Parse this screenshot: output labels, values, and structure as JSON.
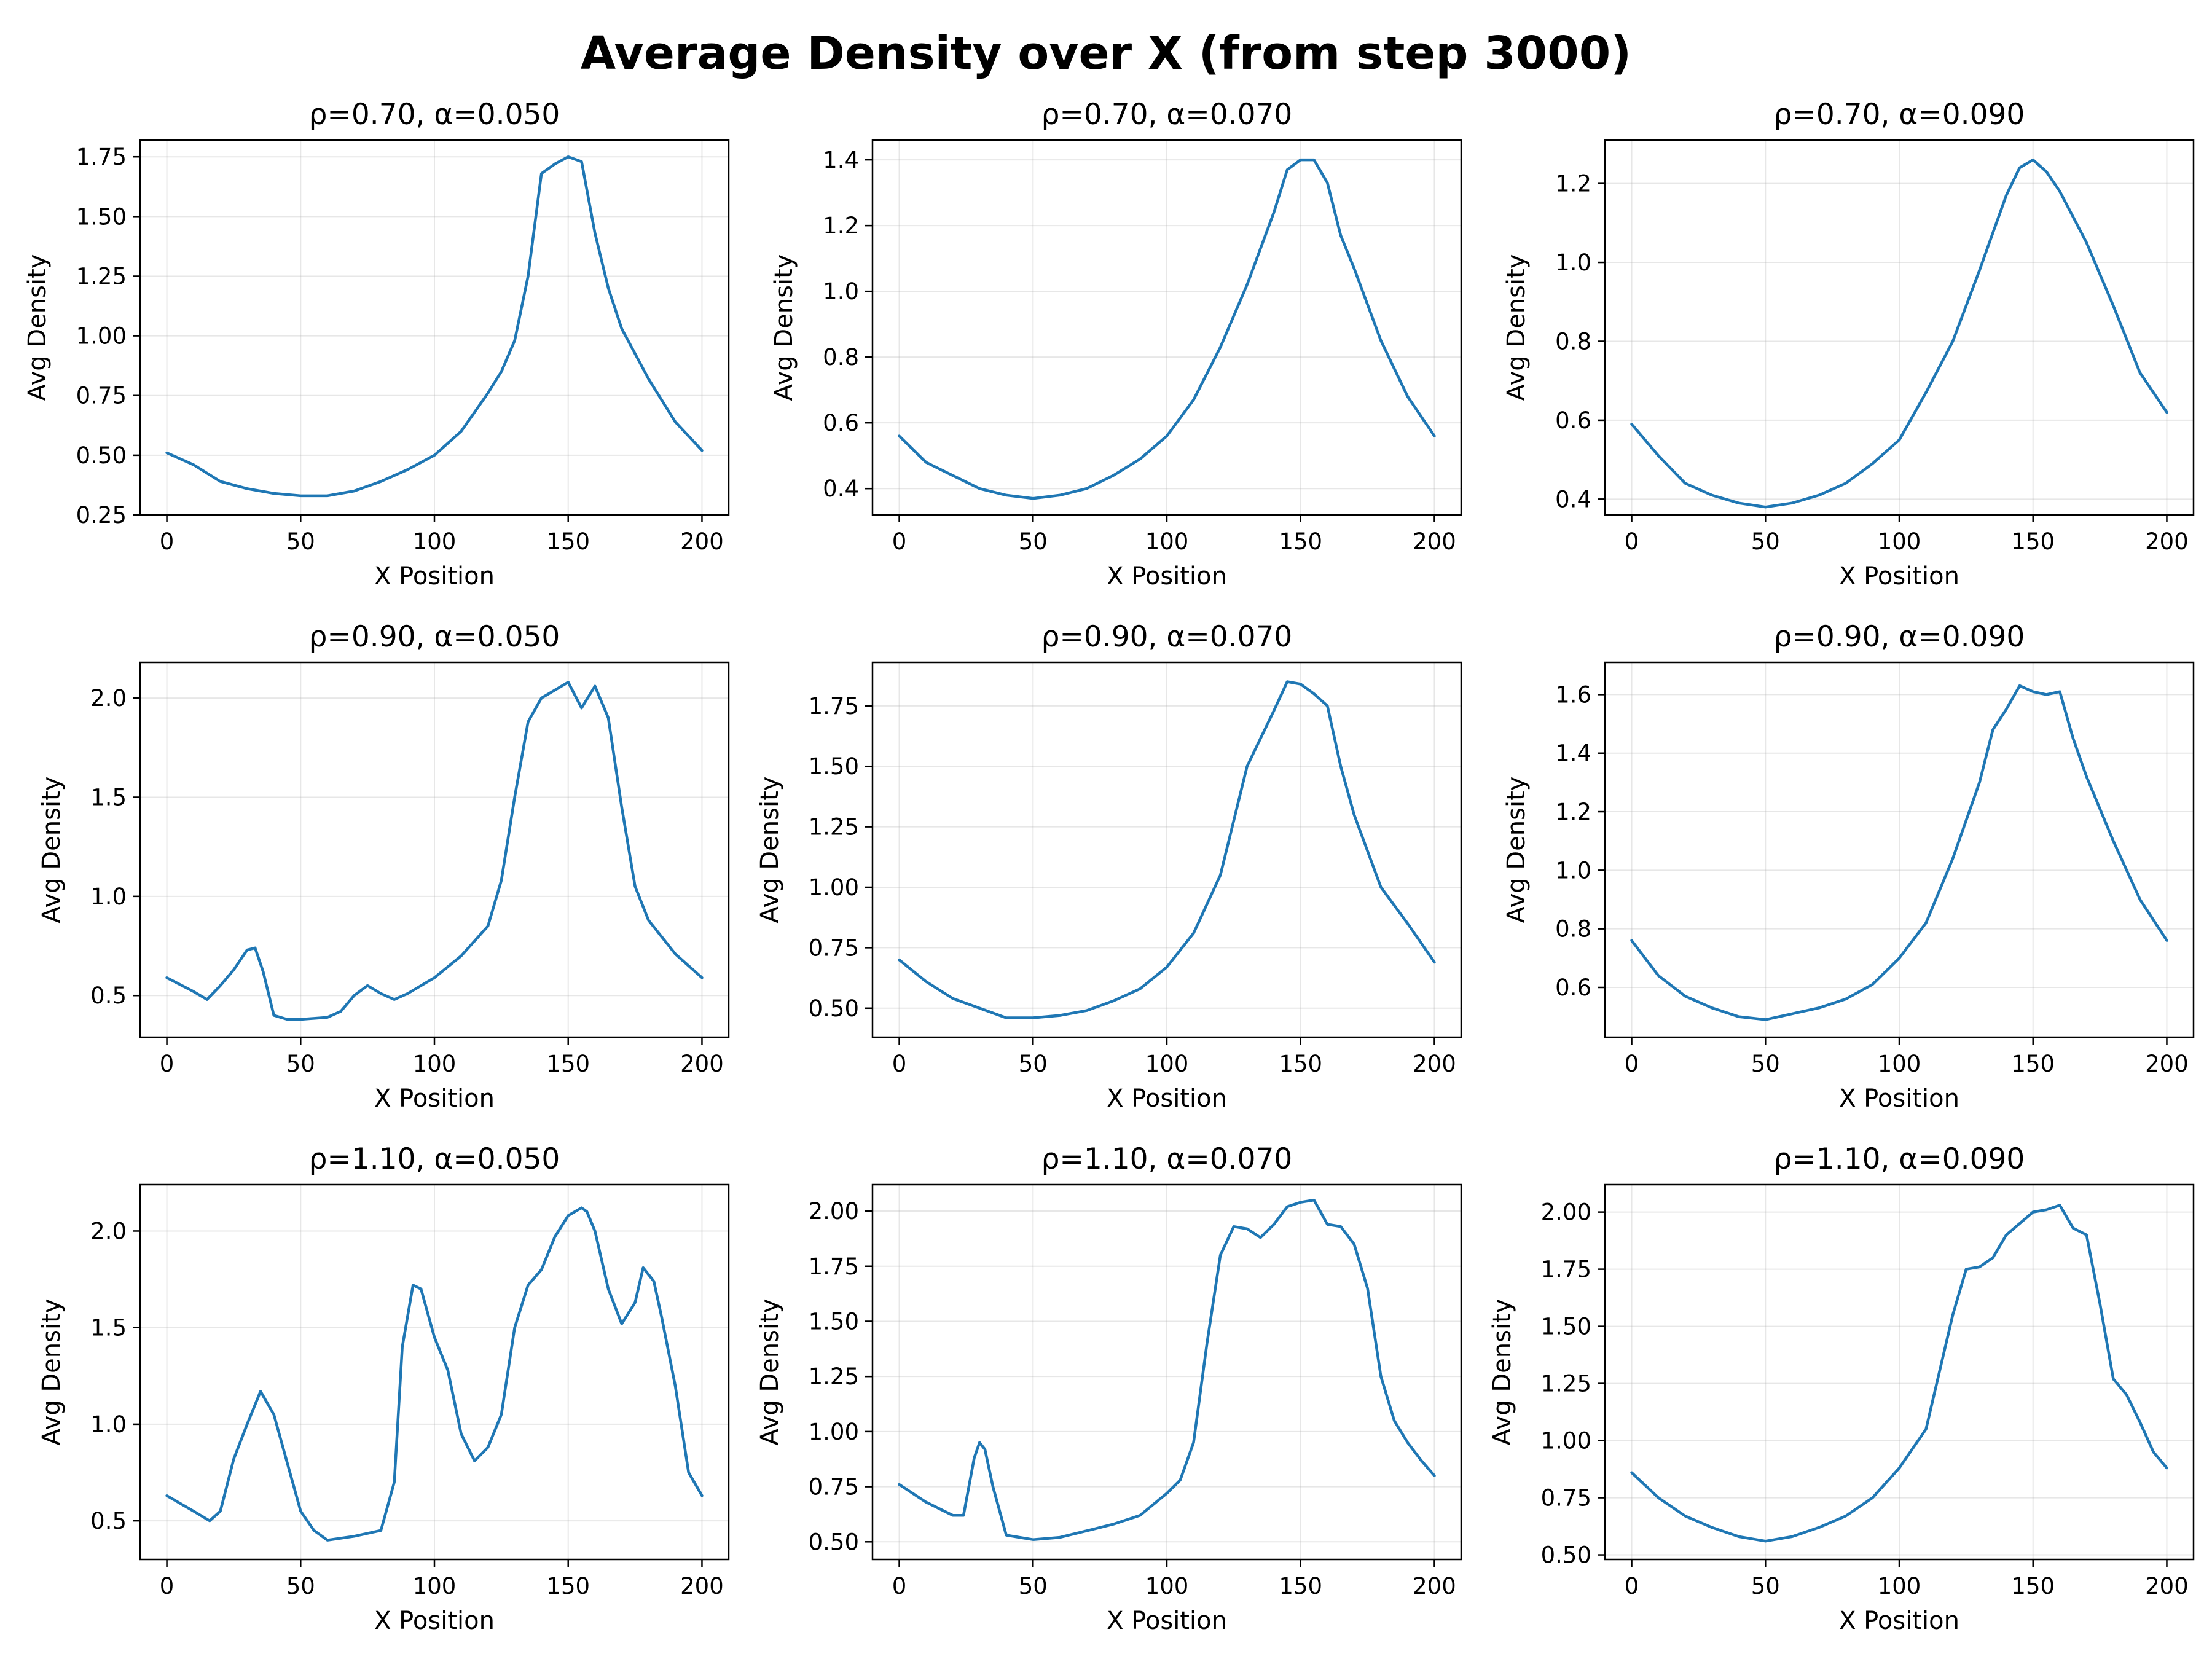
{
  "figure_title": "Average Density over X (from step 3000)",
  "colors": {
    "line": "#1f77b4",
    "grid": "#b0b0b0",
    "background": "#ffffff"
  },
  "chart_data": [
    {
      "type": "line",
      "title": "ρ=0.70, α=0.050",
      "xlabel": "X Position",
      "ylabel": "Avg Density",
      "xlim": [
        -10,
        210
      ],
      "ylim": [
        0.25,
        1.82
      ],
      "xticks": [
        0,
        50,
        100,
        150,
        200
      ],
      "yticks": [
        0.25,
        0.5,
        0.75,
        1.0,
        1.25,
        1.5,
        1.75
      ],
      "ytick_labels": [
        "0.25",
        "0.50",
        "0.75",
        "1.00",
        "1.25",
        "1.50",
        "1.75"
      ],
      "grid": true,
      "series": [
        {
          "x": [
            0,
            10,
            20,
            30,
            40,
            50,
            60,
            70,
            80,
            90,
            100,
            110,
            120,
            125,
            130,
            135,
            140,
            145,
            150,
            155,
            160,
            165,
            170,
            180,
            190,
            200
          ],
          "y": [
            0.51,
            0.46,
            0.39,
            0.36,
            0.34,
            0.33,
            0.33,
            0.35,
            0.39,
            0.44,
            0.5,
            0.6,
            0.76,
            0.85,
            0.98,
            1.25,
            1.68,
            1.72,
            1.75,
            1.73,
            1.43,
            1.2,
            1.03,
            0.82,
            0.64,
            0.52
          ]
        }
      ]
    },
    {
      "type": "line",
      "title": "ρ=0.70, α=0.070",
      "xlabel": "X Position",
      "ylabel": "Avg Density",
      "xlim": [
        -10,
        210
      ],
      "ylim": [
        0.32,
        1.46
      ],
      "xticks": [
        0,
        50,
        100,
        150,
        200
      ],
      "yticks": [
        0.4,
        0.6,
        0.8,
        1.0,
        1.2,
        1.4
      ],
      "ytick_labels": [
        "0.4",
        "0.6",
        "0.8",
        "1.0",
        "1.2",
        "1.4"
      ],
      "grid": true,
      "series": [
        {
          "x": [
            0,
            10,
            20,
            30,
            40,
            50,
            60,
            70,
            80,
            90,
            100,
            110,
            120,
            130,
            140,
            145,
            150,
            155,
            160,
            165,
            170,
            180,
            190,
            200
          ],
          "y": [
            0.56,
            0.48,
            0.44,
            0.4,
            0.38,
            0.37,
            0.38,
            0.4,
            0.44,
            0.49,
            0.56,
            0.67,
            0.83,
            1.02,
            1.24,
            1.37,
            1.4,
            1.4,
            1.33,
            1.17,
            1.07,
            0.85,
            0.68,
            0.56
          ]
        }
      ]
    },
    {
      "type": "line",
      "title": "ρ=0.70, α=0.090",
      "xlabel": "X Position",
      "ylabel": "Avg Density",
      "xlim": [
        -10,
        210
      ],
      "ylim": [
        0.36,
        1.31
      ],
      "xticks": [
        0,
        50,
        100,
        150,
        200
      ],
      "yticks": [
        0.4,
        0.6,
        0.8,
        1.0,
        1.2
      ],
      "ytick_labels": [
        "0.4",
        "0.6",
        "0.8",
        "1.0",
        "1.2"
      ],
      "grid": true,
      "series": [
        {
          "x": [
            0,
            10,
            20,
            30,
            40,
            50,
            60,
            70,
            80,
            90,
            100,
            110,
            120,
            130,
            140,
            145,
            150,
            155,
            160,
            170,
            180,
            190,
            200
          ],
          "y": [
            0.59,
            0.51,
            0.44,
            0.41,
            0.39,
            0.38,
            0.39,
            0.41,
            0.44,
            0.49,
            0.55,
            0.67,
            0.8,
            0.98,
            1.17,
            1.24,
            1.26,
            1.23,
            1.18,
            1.05,
            0.89,
            0.72,
            0.62
          ]
        }
      ]
    },
    {
      "type": "line",
      "title": "ρ=0.90, α=0.050",
      "xlabel": "X Position",
      "ylabel": "Avg Density",
      "xlim": [
        -10,
        210
      ],
      "ylim": [
        0.29,
        2.18
      ],
      "xticks": [
        0,
        50,
        100,
        150,
        200
      ],
      "yticks": [
        0.5,
        1.0,
        1.5,
        2.0
      ],
      "ytick_labels": [
        "0.5",
        "1.0",
        "1.5",
        "2.0"
      ],
      "grid": true,
      "series": [
        {
          "x": [
            0,
            10,
            15,
            20,
            25,
            30,
            33,
            36,
            40,
            45,
            50,
            60,
            65,
            70,
            75,
            80,
            85,
            90,
            100,
            110,
            120,
            125,
            130,
            135,
            140,
            145,
            150,
            155,
            160,
            165,
            170,
            175,
            180,
            190,
            200
          ],
          "y": [
            0.59,
            0.52,
            0.48,
            0.55,
            0.63,
            0.73,
            0.74,
            0.62,
            0.4,
            0.38,
            0.38,
            0.39,
            0.42,
            0.5,
            0.55,
            0.51,
            0.48,
            0.51,
            0.59,
            0.7,
            0.85,
            1.08,
            1.5,
            1.88,
            2.0,
            2.04,
            2.08,
            1.95,
            2.06,
            1.9,
            1.45,
            1.05,
            0.88,
            0.71,
            0.59
          ]
        }
      ]
    },
    {
      "type": "line",
      "title": "ρ=0.90, α=0.070",
      "xlabel": "X Position",
      "ylabel": "Avg Density",
      "xlim": [
        -10,
        210
      ],
      "ylim": [
        0.38,
        1.93
      ],
      "xticks": [
        0,
        50,
        100,
        150,
        200
      ],
      "yticks": [
        0.5,
        0.75,
        1.0,
        1.25,
        1.5,
        1.75
      ],
      "ytick_labels": [
        "0.50",
        "0.75",
        "1.00",
        "1.25",
        "1.50",
        "1.75"
      ],
      "grid": true,
      "series": [
        {
          "x": [
            0,
            10,
            20,
            30,
            40,
            50,
            60,
            70,
            80,
            90,
            100,
            110,
            120,
            130,
            140,
            145,
            150,
            155,
            160,
            165,
            170,
            180,
            190,
            200
          ],
          "y": [
            0.7,
            0.61,
            0.54,
            0.5,
            0.46,
            0.46,
            0.47,
            0.49,
            0.53,
            0.58,
            0.67,
            0.81,
            1.05,
            1.5,
            1.73,
            1.85,
            1.84,
            1.8,
            1.75,
            1.5,
            1.3,
            1.0,
            0.85,
            0.69
          ]
        }
      ]
    },
    {
      "type": "line",
      "title": "ρ=0.90, α=0.090",
      "xlabel": "X Position",
      "ylabel": "Avg Density",
      "xlim": [
        -10,
        210
      ],
      "ylim": [
        0.43,
        1.71
      ],
      "xticks": [
        0,
        50,
        100,
        150,
        200
      ],
      "yticks": [
        0.6,
        0.8,
        1.0,
        1.2,
        1.4,
        1.6
      ],
      "ytick_labels": [
        "0.6",
        "0.8",
        "1.0",
        "1.2",
        "1.4",
        "1.6"
      ],
      "grid": true,
      "series": [
        {
          "x": [
            0,
            10,
            20,
            30,
            40,
            50,
            60,
            70,
            80,
            90,
            100,
            110,
            120,
            130,
            135,
            140,
            145,
            150,
            155,
            160,
            165,
            170,
            180,
            190,
            200
          ],
          "y": [
            0.76,
            0.64,
            0.57,
            0.53,
            0.5,
            0.49,
            0.51,
            0.53,
            0.56,
            0.61,
            0.7,
            0.82,
            1.04,
            1.3,
            1.48,
            1.55,
            1.63,
            1.61,
            1.6,
            1.61,
            1.45,
            1.32,
            1.1,
            0.9,
            0.76
          ]
        }
      ]
    },
    {
      "type": "line",
      "title": "ρ=1.10, α=0.050",
      "xlabel": "X Position",
      "ylabel": "Avg Density",
      "xlim": [
        -10,
        210
      ],
      "ylim": [
        0.3,
        2.24
      ],
      "xticks": [
        0,
        50,
        100,
        150,
        200
      ],
      "yticks": [
        0.5,
        1.0,
        1.5,
        2.0
      ],
      "ytick_labels": [
        "0.5",
        "1.0",
        "1.5",
        "2.0"
      ],
      "grid": true,
      "series": [
        {
          "x": [
            0,
            10,
            16,
            20,
            25,
            30,
            35,
            40,
            45,
            50,
            55,
            60,
            70,
            80,
            85,
            88,
            92,
            95,
            100,
            105,
            110,
            115,
            120,
            125,
            130,
            135,
            140,
            145,
            150,
            155,
            157,
            160,
            165,
            170,
            175,
            178,
            182,
            185,
            190,
            195,
            200
          ],
          "y": [
            0.63,
            0.55,
            0.5,
            0.55,
            0.82,
            1.0,
            1.17,
            1.05,
            0.8,
            0.55,
            0.45,
            0.4,
            0.42,
            0.45,
            0.7,
            1.4,
            1.72,
            1.7,
            1.45,
            1.28,
            0.95,
            0.81,
            0.88,
            1.05,
            1.5,
            1.72,
            1.8,
            1.97,
            2.08,
            2.12,
            2.1,
            2.0,
            1.7,
            1.52,
            1.63,
            1.81,
            1.74,
            1.55,
            1.2,
            0.75,
            0.63
          ]
        }
      ]
    },
    {
      "type": "line",
      "title": "ρ=1.10, α=0.070",
      "xlabel": "X Position",
      "ylabel": "Avg Density",
      "xlim": [
        -10,
        210
      ],
      "ylim": [
        0.42,
        2.12
      ],
      "xticks": [
        0,
        50,
        100,
        150,
        200
      ],
      "yticks": [
        0.5,
        0.75,
        1.0,
        1.25,
        1.5,
        1.75,
        2.0
      ],
      "ytick_labels": [
        "0.50",
        "0.75",
        "1.00",
        "1.25",
        "1.50",
        "1.75",
        "2.00"
      ],
      "grid": true,
      "series": [
        {
          "x": [
            0,
            10,
            20,
            24,
            28,
            30,
            32,
            35,
            40,
            45,
            50,
            60,
            70,
            80,
            90,
            100,
            105,
            110,
            115,
            120,
            125,
            130,
            135,
            140,
            145,
            150,
            155,
            160,
            165,
            170,
            175,
            180,
            185,
            190,
            195,
            200
          ],
          "y": [
            0.76,
            0.68,
            0.62,
            0.62,
            0.88,
            0.95,
            0.92,
            0.75,
            0.53,
            0.52,
            0.51,
            0.52,
            0.55,
            0.58,
            0.62,
            0.72,
            0.78,
            0.95,
            1.4,
            1.8,
            1.93,
            1.92,
            1.88,
            1.94,
            2.02,
            2.04,
            2.05,
            1.94,
            1.93,
            1.85,
            1.65,
            1.25,
            1.05,
            0.95,
            0.87,
            0.8
          ]
        }
      ]
    },
    {
      "type": "line",
      "title": "ρ=1.10, α=0.090",
      "xlabel": "X Position",
      "ylabel": "Avg Density",
      "xlim": [
        -10,
        210
      ],
      "ylim": [
        0.48,
        2.12
      ],
      "xticks": [
        0,
        50,
        100,
        150,
        200
      ],
      "yticks": [
        0.5,
        0.75,
        1.0,
        1.25,
        1.5,
        1.75,
        2.0
      ],
      "ytick_labels": [
        "0.50",
        "0.75",
        "1.00",
        "1.25",
        "1.50",
        "1.75",
        "2.00"
      ],
      "grid": true,
      "series": [
        {
          "x": [
            0,
            10,
            20,
            30,
            40,
            50,
            60,
            70,
            80,
            90,
            100,
            110,
            115,
            120,
            125,
            130,
            135,
            140,
            145,
            150,
            155,
            160,
            165,
            170,
            175,
            180,
            185,
            190,
            195,
            200
          ],
          "y": [
            0.86,
            0.75,
            0.67,
            0.62,
            0.58,
            0.56,
            0.58,
            0.62,
            0.67,
            0.75,
            0.88,
            1.05,
            1.3,
            1.55,
            1.75,
            1.76,
            1.8,
            1.9,
            1.95,
            2.0,
            2.01,
            2.03,
            1.93,
            1.9,
            1.6,
            1.27,
            1.2,
            1.08,
            0.95,
            0.88
          ]
        }
      ]
    }
  ]
}
